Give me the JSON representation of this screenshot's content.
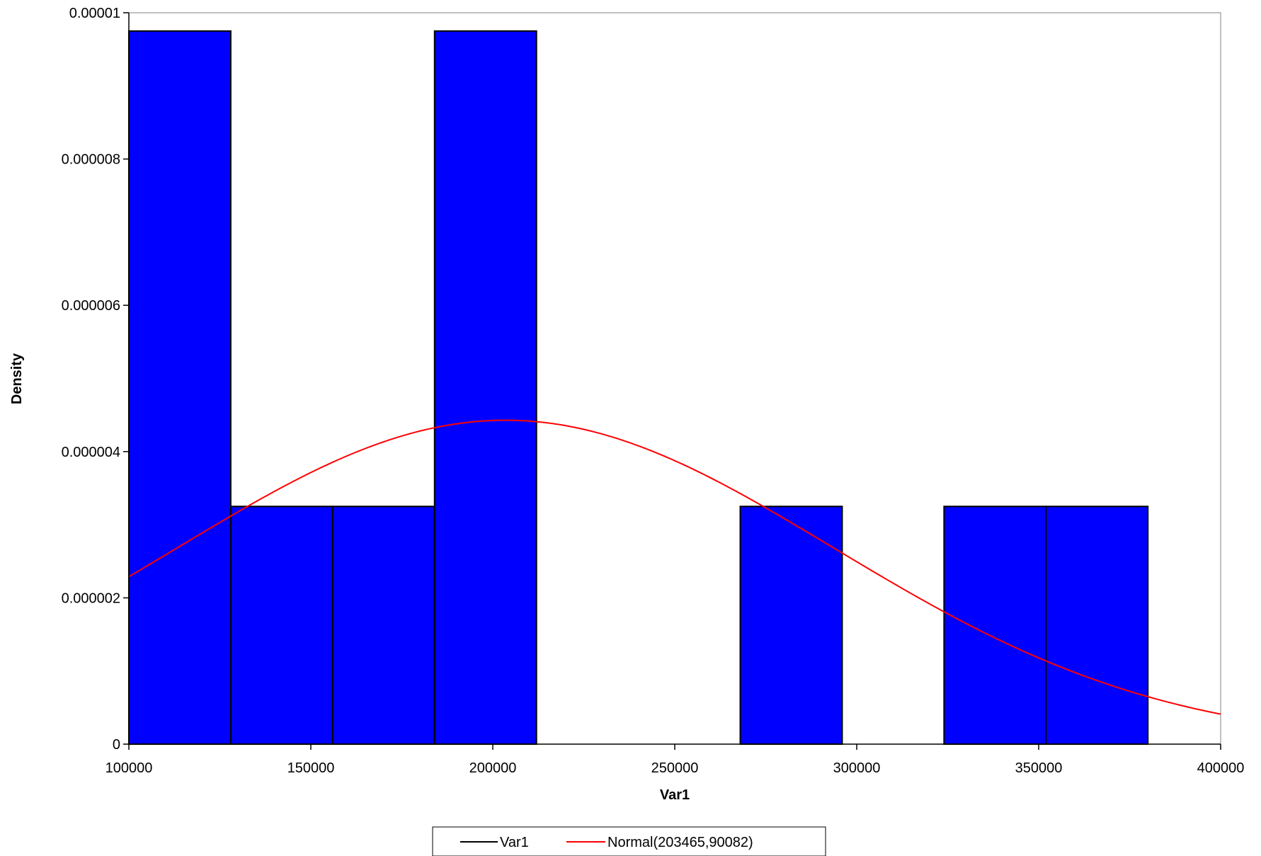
{
  "chart_data": {
    "type": "bar",
    "title": "",
    "xlabel": "Var1",
    "ylabel": "Density",
    "xlim": [
      100000,
      400000
    ],
    "ylim": [
      0,
      1e-05
    ],
    "x_ticks": [
      {
        "value": 100000,
        "label": "100000"
      },
      {
        "value": 150000,
        "label": "150000"
      },
      {
        "value": 200000,
        "label": "200000"
      },
      {
        "value": 250000,
        "label": "250000"
      },
      {
        "value": 300000,
        "label": "300000"
      },
      {
        "value": 350000,
        "label": "350000"
      },
      {
        "value": 400000,
        "label": "400000"
      }
    ],
    "y_ticks": [
      {
        "value": 0,
        "label": "0"
      },
      {
        "value": 2e-06,
        "label": "0.000002"
      },
      {
        "value": 4e-06,
        "label": "0.000004"
      },
      {
        "value": 6e-06,
        "label": "0.000006"
      },
      {
        "value": 8e-06,
        "label": "0.000008"
      },
      {
        "value": 1e-05,
        "label": "0.00001"
      }
    ],
    "grid": false,
    "legend_position": "bottom",
    "colors": {
      "bar_fill": "#0000ff",
      "bar_edge": "#000000",
      "curve": "#ff0000"
    },
    "series": [
      {
        "name": "Var1",
        "kind": "histogram",
        "bin_edges": [
          100000,
          128000,
          156000,
          184000,
          212000,
          240000,
          268000,
          296000,
          324000,
          352000,
          380000
        ],
        "densities": [
          9.75e-06,
          3.25e-06,
          3.25e-06,
          9.75e-06,
          0,
          0,
          3.25e-06,
          0,
          3.25e-06,
          3.25e-06
        ]
      },
      {
        "name": "Normal(203465,90082)",
        "kind": "normal_curve",
        "mean": 203465,
        "sd": 90082
      }
    ]
  }
}
